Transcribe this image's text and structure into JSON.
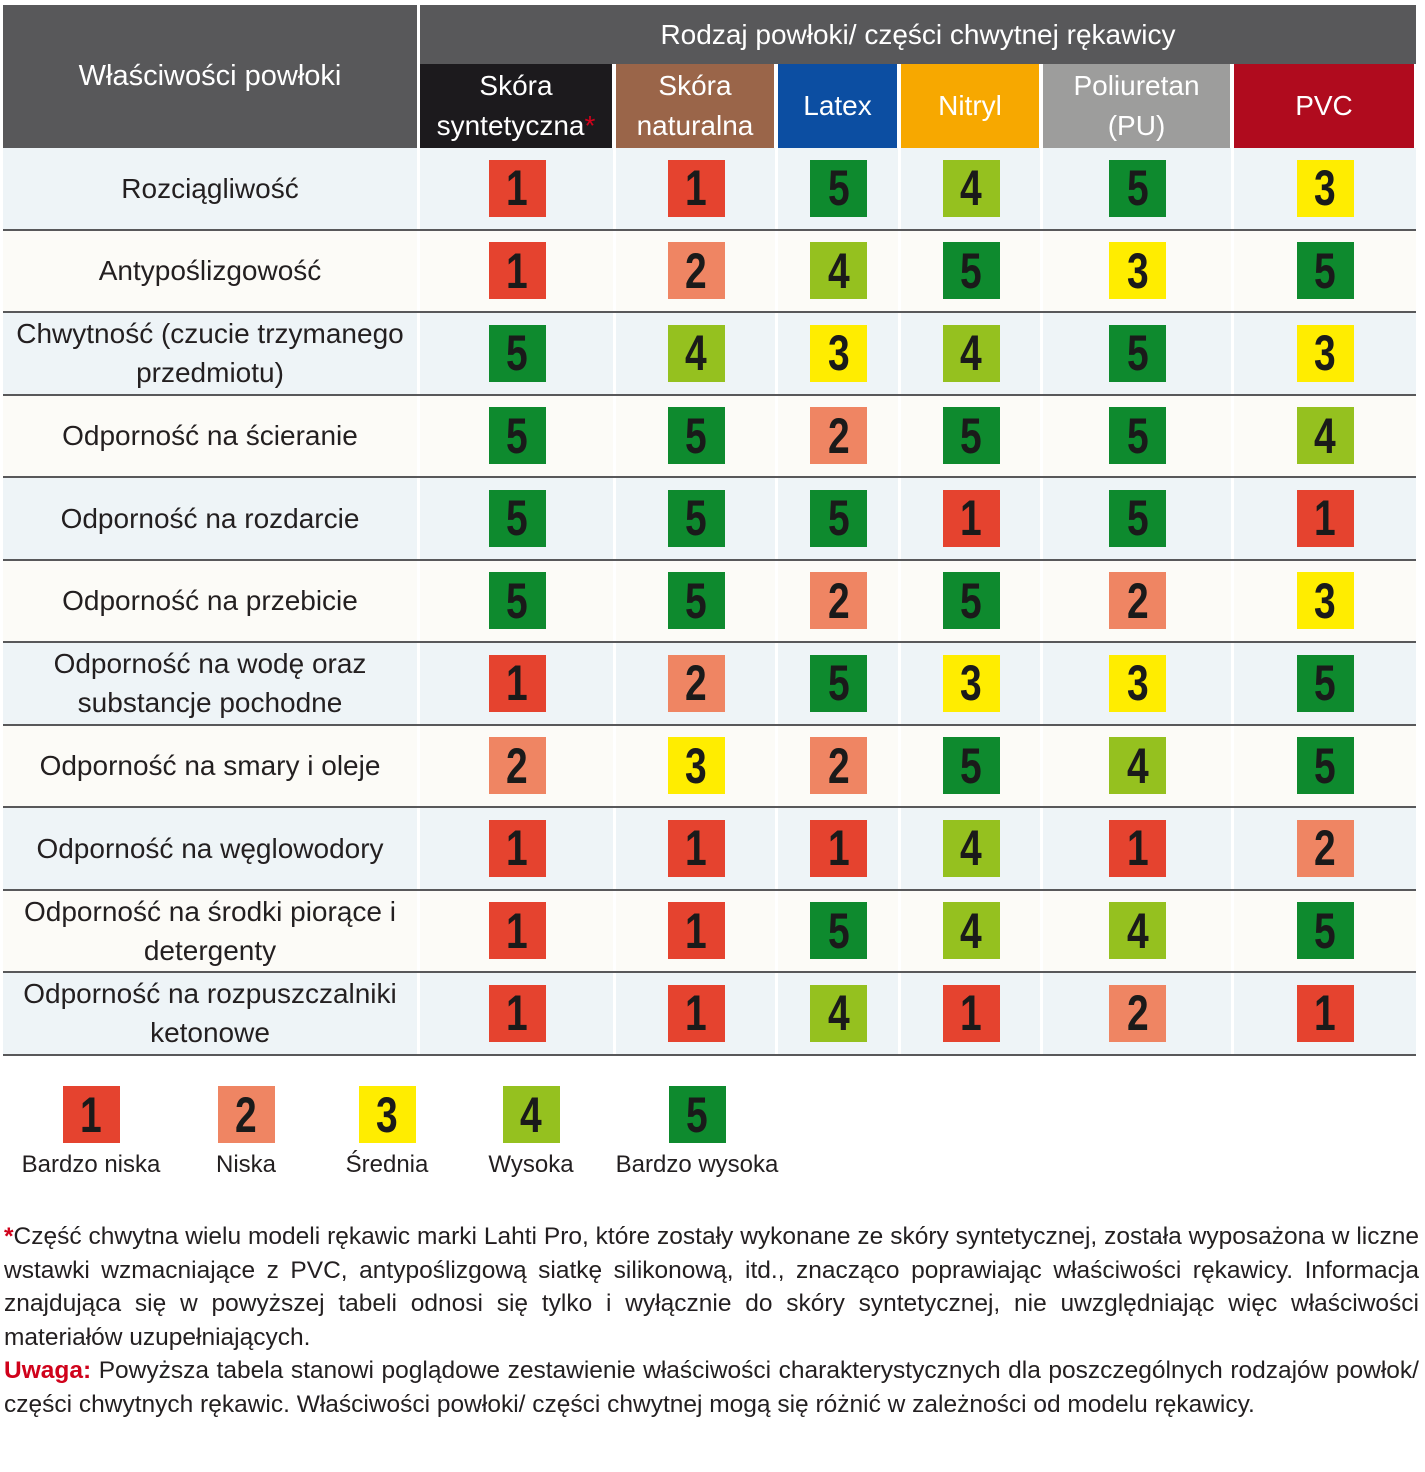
{
  "header": {
    "property_col": "Właściwości powłoki",
    "group": "Rodzaj powłoki/ części chwytnej rękawicy",
    "columns": [
      {
        "line1": "Skóra",
        "line2": "syntetyczna",
        "asterisk": "*",
        "color": "#1c1a1d"
      },
      {
        "line1": "Skóra",
        "line2": "naturalna",
        "asterisk": "",
        "color": "#9a6549"
      },
      {
        "line1": "Latex",
        "line2": "",
        "asterisk": "",
        "color": "#0c4ea2"
      },
      {
        "line1": "Nitryl",
        "line2": "",
        "asterisk": "",
        "color": "#f7a800"
      },
      {
        "line1": "Poliuretan",
        "line2": "(PU)",
        "asterisk": "",
        "color": "#9d9d9c"
      },
      {
        "line1": "PVC",
        "line2": "",
        "asterisk": "",
        "color": "#b00b1e"
      }
    ]
  },
  "colors": {
    "1": "#e5432f",
    "2": "#ef8563",
    "3": "#ffed00",
    "4": "#95c11f",
    "5": "#0e8a2e"
  },
  "rows": [
    {
      "label": "Rozciągliwość",
      "values": [
        1,
        1,
        5,
        4,
        5,
        3
      ]
    },
    {
      "label": "Antypoślizgowość",
      "values": [
        1,
        2,
        4,
        5,
        3,
        5
      ]
    },
    {
      "label": "Chwytność (czucie trzymanego przedmiotu)",
      "values": [
        5,
        4,
        3,
        4,
        5,
        3
      ]
    },
    {
      "label": "Odporność na ścieranie",
      "values": [
        5,
        5,
        2,
        5,
        5,
        4
      ]
    },
    {
      "label": "Odporność na rozdarcie",
      "values": [
        5,
        5,
        5,
        1,
        5,
        1
      ]
    },
    {
      "label": "Odporność na przebicie",
      "values": [
        5,
        5,
        2,
        5,
        2,
        3
      ]
    },
    {
      "label": "Odporność na wodę oraz substancje pochodne",
      "values": [
        1,
        2,
        5,
        3,
        3,
        5
      ]
    },
    {
      "label": "Odporność na smary i oleje",
      "values": [
        2,
        3,
        2,
        5,
        4,
        5
      ]
    },
    {
      "label": "Odporność na węglowodory",
      "values": [
        1,
        1,
        1,
        4,
        1,
        2
      ]
    },
    {
      "label": "Odporność na środki piorące i detergenty",
      "values": [
        1,
        1,
        5,
        4,
        4,
        5
      ]
    },
    {
      "label": "Odporność na rozpuszczalniki ketonowe",
      "values": [
        1,
        1,
        4,
        1,
        2,
        1
      ]
    }
  ],
  "legend": [
    {
      "value": 1,
      "label": "Bardzo niska"
    },
    {
      "value": 2,
      "label": "Niska"
    },
    {
      "value": 3,
      "label": "Średnia"
    },
    {
      "value": 4,
      "label": "Wysoka"
    },
    {
      "value": 5,
      "label": "Bardzo wysoka"
    }
  ],
  "notes": {
    "asterisk": "*",
    "footnote": "Część chwytna wielu modeli rękawic marki Lahti Pro, które zostały wykonane ze skóry syntetycznej, została wyposażona w liczne wstawki wzmacniające z PVC, antypoślizgową siatkę silikonową, itd., znacząco poprawiając właściwości rękawicy. Informacja znajdująca się w powyższej tabeli odnosi się tylko i wyłącznie do skóry syntetycznej, nie uwzględniając więc właściwości materiałów uzupełniających.",
    "warning_label": "Uwaga:",
    "warning": " Powyższa tabela stanowi poglądowe zestawienie właściwości charakterystycznych dla poszczególnych rodzajów powłok/ części chwytnych rękawic. Właściwości powłoki/ części chwytnej mogą się różnić w zależności od modelu rękawicy."
  }
}
